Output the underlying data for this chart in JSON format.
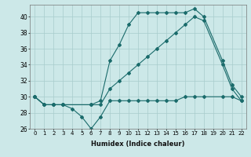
{
  "xlabel": "Humidex (Indice chaleur)",
  "background_color": "#cce8e8",
  "line_color": "#1a6b6b",
  "x_ticks": [
    0,
    1,
    2,
    3,
    4,
    5,
    6,
    7,
    8,
    9,
    10,
    11,
    12,
    13,
    14,
    15,
    16,
    17,
    18,
    19,
    20,
    21,
    22
  ],
  "ylim": [
    26,
    41.5
  ],
  "yticks": [
    26,
    28,
    30,
    32,
    34,
    36,
    38,
    40
  ],
  "series": {
    "top": {
      "x": [
        0,
        1,
        2,
        3,
        6,
        7,
        8,
        9,
        10,
        11,
        12,
        13,
        14,
        15,
        16,
        17,
        18,
        20,
        21,
        22
      ],
      "y": [
        30,
        29,
        29,
        29,
        29,
        29.5,
        34.5,
        36.5,
        39,
        40.5,
        40.5,
        40.5,
        40.5,
        40.5,
        40.5,
        41,
        40,
        34.5,
        31.5,
        30
      ]
    },
    "mid": {
      "x": [
        0,
        1,
        2,
        3,
        6,
        7,
        8,
        9,
        10,
        11,
        12,
        13,
        14,
        15,
        16,
        17,
        18,
        20,
        21,
        22
      ],
      "y": [
        30,
        29,
        29,
        29,
        29,
        29,
        31,
        32,
        33,
        34,
        35,
        36,
        37,
        38,
        39,
        40,
        39.5,
        34,
        31,
        29.5
      ]
    },
    "bot": {
      "x": [
        0,
        1,
        2,
        3,
        4,
        5,
        6,
        7,
        8,
        9,
        10,
        11,
        12,
        13,
        14,
        15,
        16,
        17,
        18,
        20,
        21,
        22
      ],
      "y": [
        30,
        29,
        29,
        29,
        28.5,
        27.5,
        26,
        27.5,
        29.5,
        29.5,
        29.5,
        29.5,
        29.5,
        29.5,
        29.5,
        29.5,
        30,
        30,
        30,
        30,
        30,
        29.5
      ]
    }
  }
}
